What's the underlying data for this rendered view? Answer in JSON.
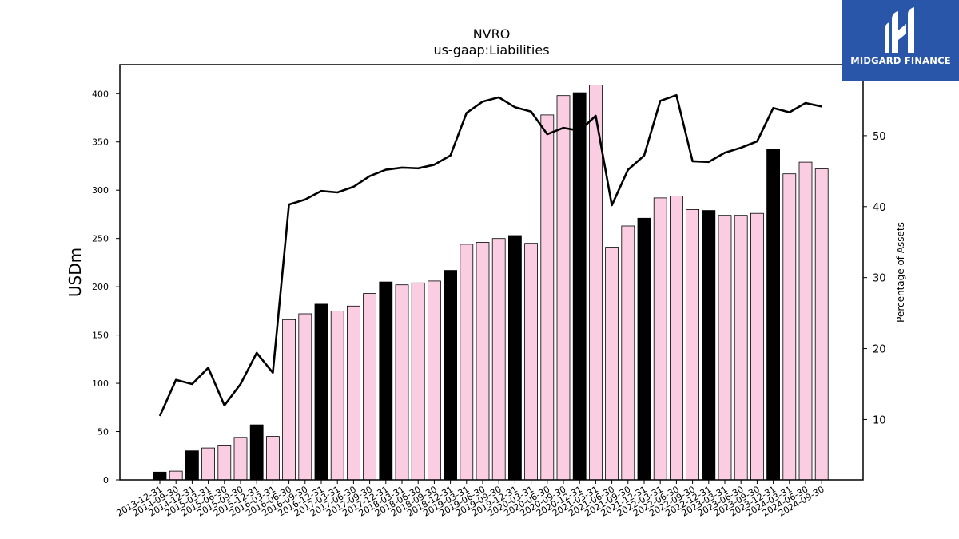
{
  "brand": {
    "name": "MIDGARD FINANCE"
  },
  "chart_data": {
    "type": "bar",
    "title": "NVRO",
    "subtitle": "us-gaap:Liabilities",
    "ylabel": "USDm",
    "y2label": "Percentage of Assets",
    "ylim": [
      0,
      430
    ],
    "y2lim": [
      1.5,
      60.0
    ],
    "yticks": [
      0,
      50,
      100,
      150,
      200,
      250,
      300,
      350,
      400
    ],
    "y2ticks": [
      10,
      20,
      30,
      40,
      50
    ],
    "colors": {
      "annual_bar": "#000000",
      "quarterly_bar": "#fbcde2",
      "line": "#000000"
    },
    "categories": [
      "2013-12-31",
      "2014-09-30",
      "2014-12-31",
      "2015-03-31",
      "2015-06-30",
      "2015-09-30",
      "2015-12-31",
      "2016-03-31",
      "2016-06-30",
      "2016-09-30",
      "2016-12-31",
      "2017-03-31",
      "2017-06-30",
      "2017-09-30",
      "2017-12-31",
      "2018-03-31",
      "2018-06-30",
      "2018-09-30",
      "2018-12-31",
      "2019-03-31",
      "2019-06-30",
      "2019-09-30",
      "2019-12-31",
      "2020-03-31",
      "2020-06-30",
      "2020-09-30",
      "2020-12-31",
      "2021-03-31",
      "2021-06-30",
      "2021-09-30",
      "2021-12-31",
      "2022-03-31",
      "2022-06-30",
      "2022-09-30",
      "2022-12-31",
      "2023-03-31",
      "2023-06-30",
      "2023-09-30",
      "2023-12-31",
      "2024-03-31",
      "2024-06-30",
      "2024-09-30"
    ],
    "series": [
      {
        "type": "bar",
        "values": [
          8,
          9,
          30,
          33,
          36,
          44,
          57,
          45,
          166,
          172,
          182,
          175,
          180,
          193,
          205,
          202,
          204,
          206,
          217,
          244,
          246,
          250,
          253,
          245,
          378,
          398,
          401,
          409,
          241,
          263,
          271,
          292,
          294,
          280,
          279,
          274,
          274,
          276,
          342,
          317,
          329,
          322
        ],
        "annual": [
          true,
          false,
          true,
          false,
          false,
          false,
          true,
          false,
          false,
          false,
          true,
          false,
          false,
          false,
          true,
          false,
          false,
          false,
          true,
          false,
          false,
          false,
          true,
          false,
          false,
          false,
          true,
          false,
          false,
          false,
          true,
          false,
          false,
          false,
          true,
          false,
          false,
          false,
          true,
          false,
          false,
          false
        ]
      },
      {
        "type": "line",
        "axis": "right",
        "values": [
          10.5,
          15.6,
          15.0,
          17.3,
          12.0,
          15.0,
          19.4,
          16.6,
          40.3,
          41.0,
          42.2,
          42.0,
          42.8,
          44.3,
          45.2,
          45.5,
          45.4,
          45.9,
          47.2,
          53.2,
          54.8,
          55.4,
          54.0,
          53.4,
          50.2,
          51.1,
          50.7,
          52.8,
          40.2,
          45.2,
          47.2,
          54.9,
          55.7,
          46.4,
          46.3,
          47.6,
          48.3,
          49.2,
          53.9,
          53.3,
          54.6,
          54.1
        ]
      }
    ],
    "grid": false,
    "legend": "none"
  }
}
